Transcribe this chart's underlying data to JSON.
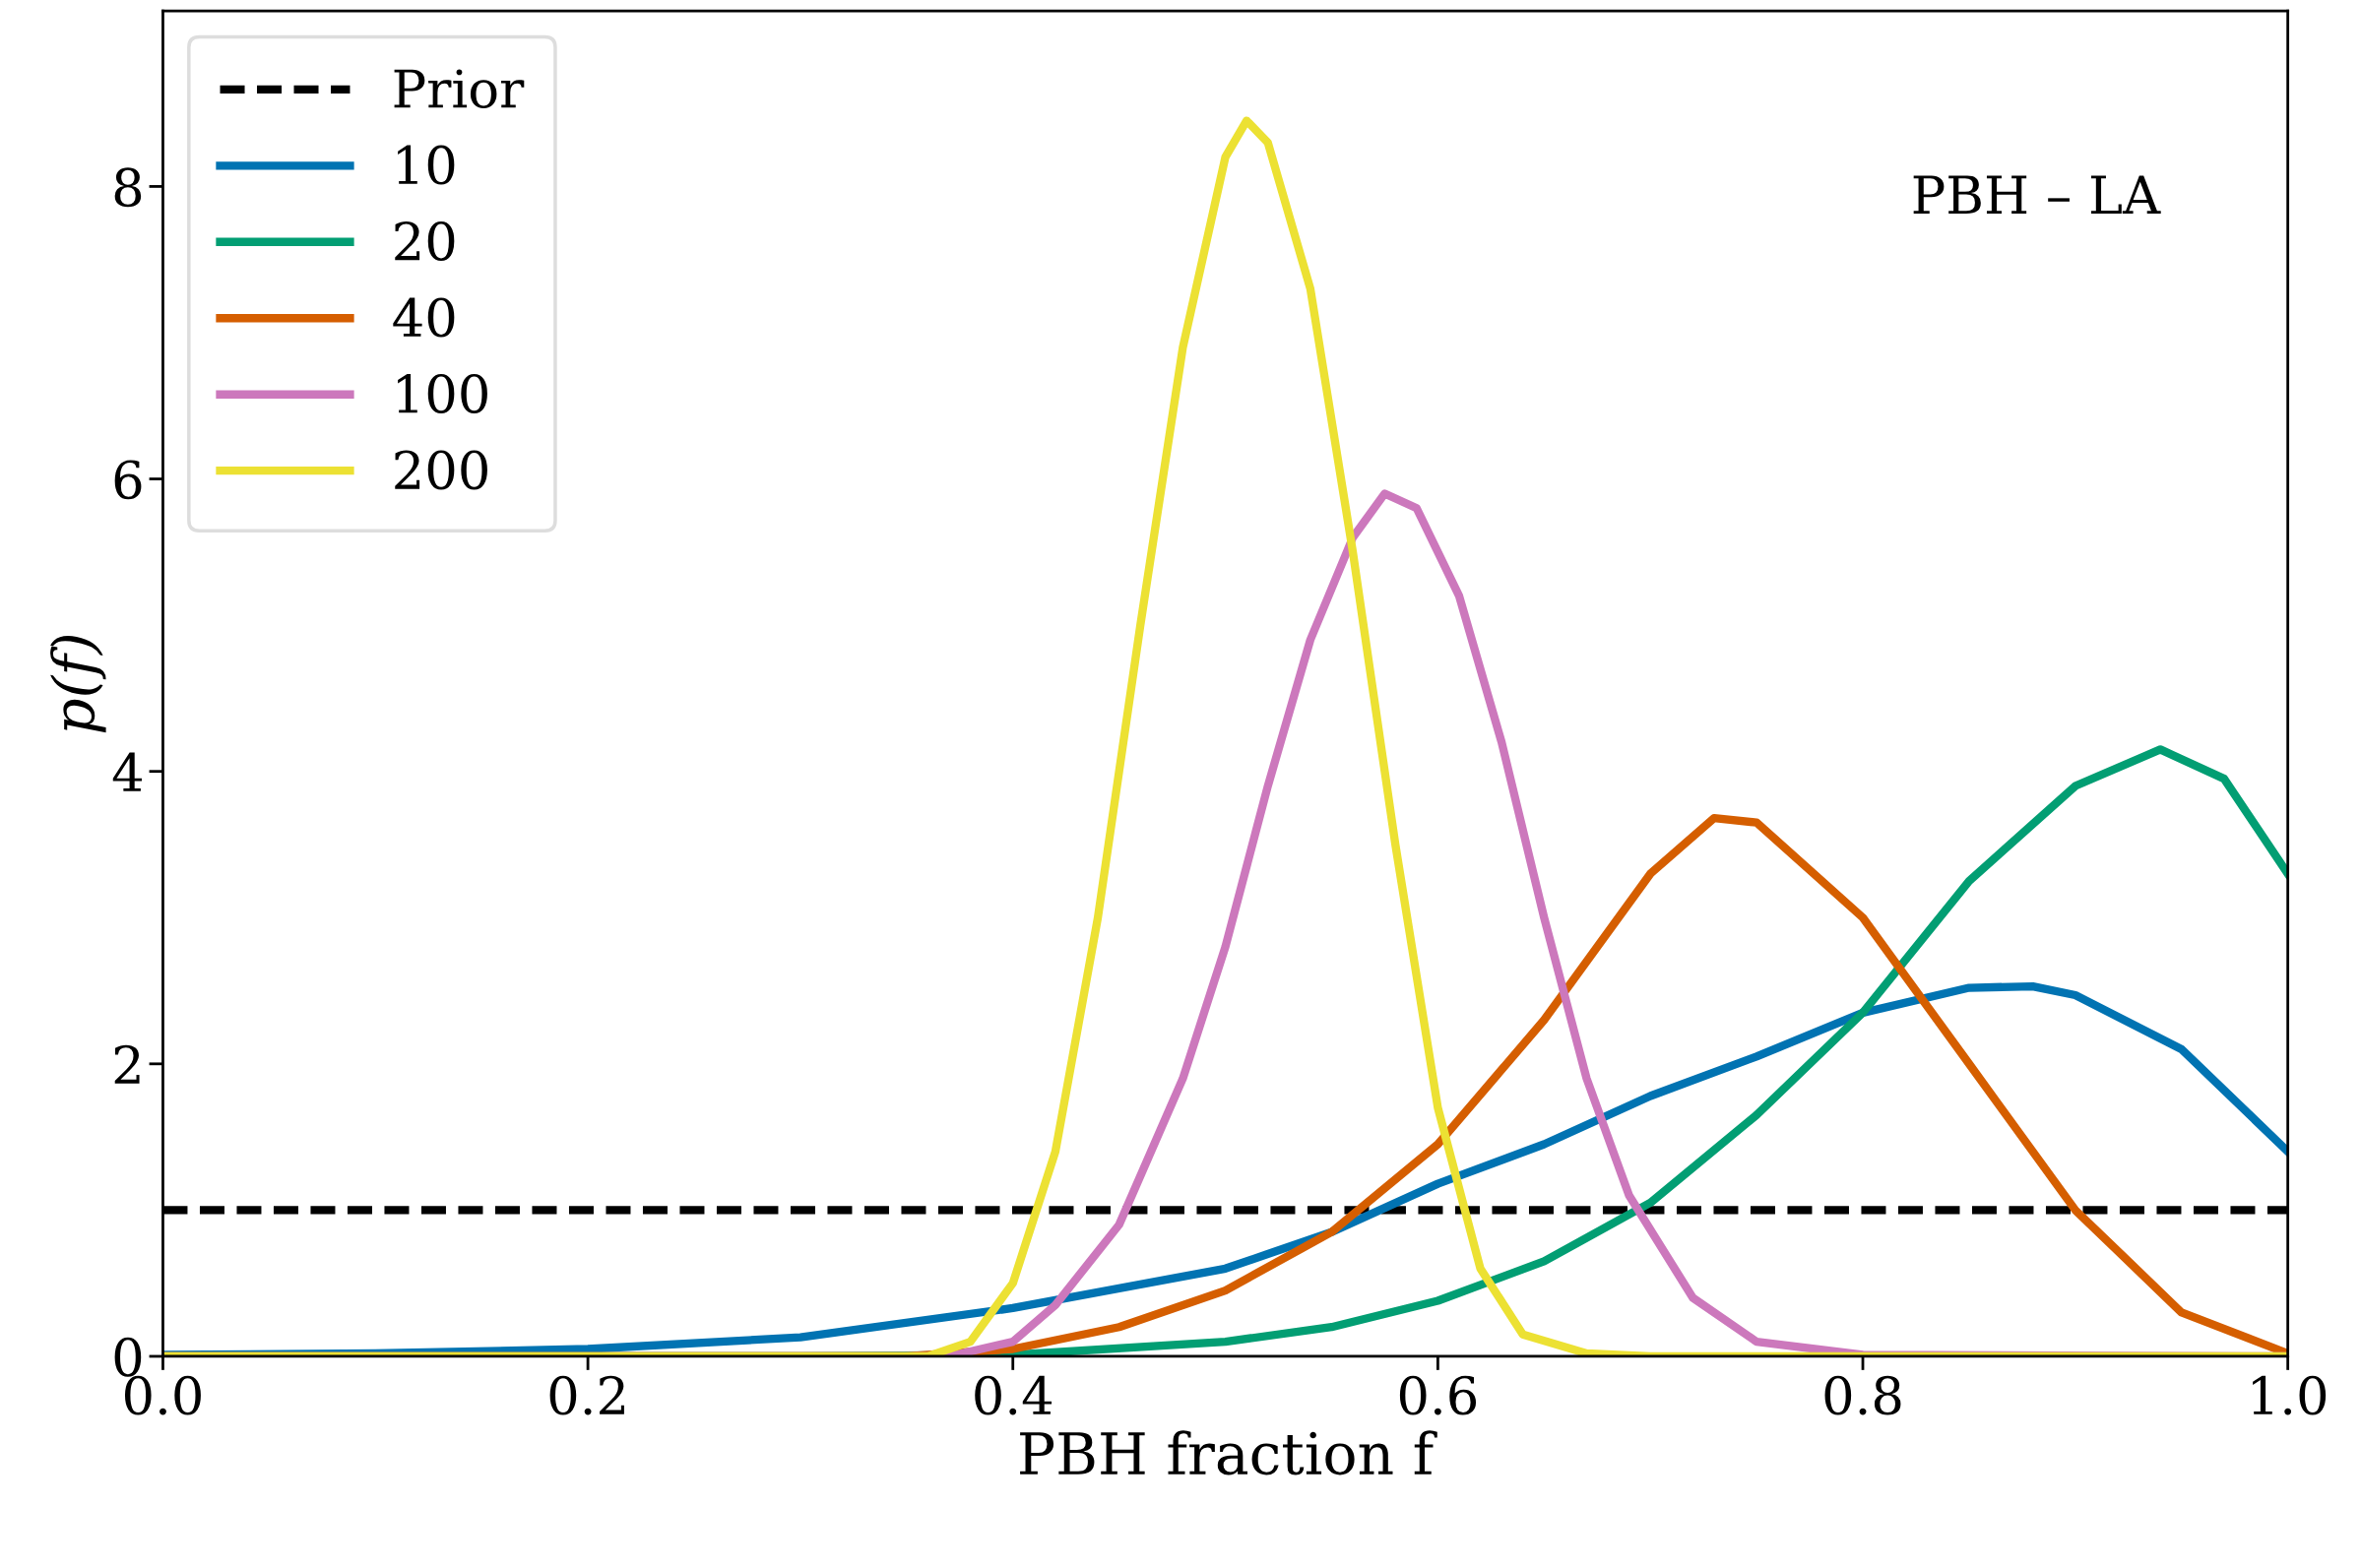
{
  "chart_data": {
    "type": "line",
    "xlabel": "PBH fraction f",
    "ylabel": "p(f)",
    "annotations": [
      "PBH – LA"
    ],
    "xlim": [
      0,
      1
    ],
    "ylim": [
      0,
      9.2
    ],
    "xticks": [
      {
        "value": 0,
        "label": "0.0"
      },
      {
        "value": 0.2,
        "label": "0.2"
      },
      {
        "value": 0.4,
        "label": "0.4"
      },
      {
        "value": 0.6,
        "label": "0.6"
      },
      {
        "value": 0.8,
        "label": "0.8"
      },
      {
        "value": 1,
        "label": "1.0"
      }
    ],
    "yticks": [
      0,
      2,
      4,
      6,
      8
    ],
    "grid": false,
    "legend": "top left",
    "marker": "none",
    "series": [
      {
        "name": "Prior",
        "color": "#000000",
        "line_style": "dashed",
        "x": [
          0,
          1
        ],
        "values": [
          1,
          1
        ]
      },
      {
        "name": "10",
        "color": "#0173b2",
        "x": [
          0,
          0.1,
          0.2,
          0.3,
          0.4,
          0.5,
          0.55,
          0.6,
          0.65,
          0.7,
          0.75,
          0.8,
          0.85,
          0.88,
          0.9,
          0.95,
          1.0
        ],
        "values": [
          0.01,
          0.02,
          0.05,
          0.13,
          0.33,
          0.6,
          0.85,
          1.18,
          1.45,
          1.78,
          2.05,
          2.35,
          2.52,
          2.53,
          2.47,
          2.1,
          1.4
        ]
      },
      {
        "name": "20",
        "color": "#029e73",
        "x": [
          0,
          0.3,
          0.4,
          0.5,
          0.55,
          0.6,
          0.65,
          0.7,
          0.75,
          0.8,
          0.85,
          0.9,
          0.94,
          0.97,
          1.0
        ],
        "values": [
          0,
          0,
          0.01,
          0.1,
          0.2,
          0.38,
          0.65,
          1.05,
          1.65,
          2.35,
          3.25,
          3.9,
          4.15,
          3.95,
          3.3
        ]
      },
      {
        "name": "40",
        "color": "#d55e00",
        "x": [
          0,
          0.35,
          0.4,
          0.45,
          0.5,
          0.55,
          0.6,
          0.65,
          0.7,
          0.73,
          0.75,
          0.8,
          0.85,
          0.9,
          0.95,
          1.0
        ],
        "values": [
          0,
          0,
          0.05,
          0.2,
          0.45,
          0.85,
          1.45,
          2.3,
          3.3,
          3.68,
          3.65,
          3.0,
          2.0,
          1.0,
          0.3,
          0.02
        ]
      },
      {
        "name": "100",
        "color": "#cc78bc",
        "x": [
          0,
          0.37,
          0.4,
          0.42,
          0.45,
          0.48,
          0.5,
          0.52,
          0.54,
          0.56,
          0.575,
          0.59,
          0.61,
          0.63,
          0.65,
          0.67,
          0.69,
          0.72,
          0.75,
          0.8,
          1.0
        ],
        "values": [
          0,
          0,
          0.1,
          0.35,
          0.9,
          1.9,
          2.8,
          3.9,
          4.9,
          5.6,
          5.9,
          5.8,
          5.2,
          4.2,
          3.0,
          1.9,
          1.1,
          0.4,
          0.1,
          0.01,
          0
        ]
      },
      {
        "name": "200",
        "color": "#ece133",
        "x": [
          0,
          0.36,
          0.38,
          0.4,
          0.42,
          0.44,
          0.46,
          0.48,
          0.5,
          0.51,
          0.52,
          0.54,
          0.56,
          0.58,
          0.6,
          0.62,
          0.64,
          0.67,
          0.7,
          1.0
        ],
        "values": [
          0,
          0,
          0.1,
          0.5,
          1.4,
          3.0,
          5.0,
          6.9,
          8.2,
          8.45,
          8.3,
          7.3,
          5.5,
          3.5,
          1.7,
          0.6,
          0.15,
          0.02,
          0,
          0
        ]
      }
    ]
  }
}
